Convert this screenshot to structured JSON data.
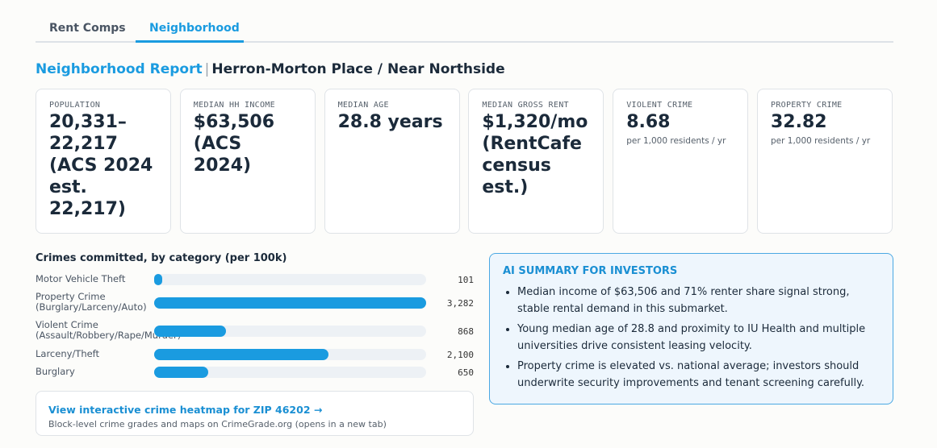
{
  "tabs": [
    "Rent Comps",
    "Neighborhood"
  ],
  "header": {
    "title": "Neighborhood Report",
    "separator": "|",
    "subtitle": "Herron-Morton Place / Near Northside"
  },
  "cards": [
    {
      "label": "POPULATION",
      "value": "20,331–22,217 (ACS 2024 est. 22,217)"
    },
    {
      "label": "MEDIAN HH INCOME",
      "value": "$63,506 (ACS 2024)"
    },
    {
      "label": "MEDIAN AGE",
      "value": "28.8 years"
    },
    {
      "label": "MEDIAN GROSS RENT",
      "value": "$1,320/mo (RentCafe census est.)"
    },
    {
      "label": "VIOLENT CRIME",
      "value": "8.68",
      "note": "per 1,000 residents / yr"
    },
    {
      "label": "PROPERTY CRIME",
      "value": "32.82",
      "note": "per 1,000 residents / yr"
    }
  ],
  "chart_data": {
    "type": "bar",
    "orientation": "horizontal",
    "title": "Crimes committed, by category (per 100k)",
    "categories": [
      "Motor Vehicle Theft",
      "Property Crime (Burglary/Larceny/Auto)",
      "Violent Crime (Assault/Robbery/Rape/Murder)",
      "Larceny/Theft",
      "Burglary"
    ],
    "values": [
      101,
      3282,
      868,
      2100,
      650
    ],
    "value_labels": [
      "101",
      "3,282",
      "868",
      "2,100",
      "650"
    ],
    "xlim": [
      0,
      3282
    ],
    "color": "#1a9be0",
    "track_color": "#edf1f5"
  },
  "link_card": {
    "link": "View interactive crime heatmap for ZIP 46202 →",
    "caption": "Block-level crime grades and maps on CrimeGrade.org (opens in a new tab)"
  },
  "summary": {
    "title": "AI SUMMARY FOR INVESTORS",
    "bullets": [
      "Median income of $63,506 and 71% renter share signal strong, stable rental demand in this submarket.",
      "Young median age of 28.8 and proximity to IU Health and multiple universities drive consistent leasing velocity.",
      "Property crime is elevated vs. national average; investors should underwrite security improvements and tenant screening carefully."
    ]
  }
}
